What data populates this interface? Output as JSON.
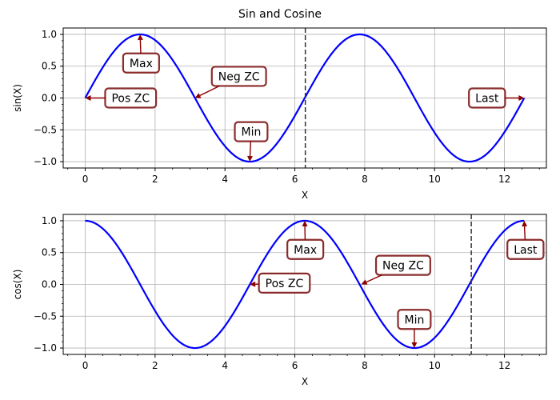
{
  "figure_title": "Sin and Cosine",
  "colors": {
    "curve": "#0000ff",
    "annotation_border": "#8b2c2c",
    "arrow": "#8b0000",
    "vline": "#333333",
    "grid": "#b0b0b0"
  },
  "chart_data": [
    {
      "type": "line",
      "function": "sin",
      "xlabel": "X",
      "ylabel": "sin(X)",
      "xlim": [
        -0.63,
        13.2
      ],
      "ylim": [
        -1.1,
        1.1
      ],
      "x_ticks": [
        0,
        2,
        4,
        6,
        8,
        10,
        12
      ],
      "y_ticks": [
        -1.0,
        -0.5,
        0.0,
        0.5,
        1.0
      ],
      "x_tick_labels": [
        "0",
        "2",
        "4",
        "6",
        "8",
        "10",
        "12"
      ],
      "y_tick_labels": [
        "−1.0",
        "−0.5",
        "0.0",
        "0.5",
        "1.0"
      ],
      "grid": true,
      "x_range": [
        0,
        12.566
      ],
      "vline_x": 6.3,
      "annotations": [
        {
          "label": "Max",
          "point": [
            1.571,
            1.0
          ],
          "text_at": [
            1.6,
            0.55
          ]
        },
        {
          "label": "Neg ZC",
          "point": [
            3.14,
            0.0
          ],
          "text_at": [
            4.4,
            0.34
          ]
        },
        {
          "label": "Pos ZC",
          "point": [
            0.0,
            0.0
          ],
          "text_at": [
            1.3,
            0.0
          ]
        },
        {
          "label": "Min",
          "point": [
            4.71,
            -1.0
          ],
          "text_at": [
            4.75,
            -0.53
          ]
        },
        {
          "label": "Last",
          "point": [
            12.566,
            0.0
          ],
          "text_at": [
            11.5,
            0.0
          ]
        }
      ]
    },
    {
      "type": "line",
      "function": "cos",
      "xlabel": "X",
      "ylabel": "cos(X)",
      "xlim": [
        -0.63,
        13.2
      ],
      "ylim": [
        -1.1,
        1.1
      ],
      "x_ticks": [
        0,
        2,
        4,
        6,
        8,
        10,
        12
      ],
      "y_ticks": [
        -1.0,
        -0.5,
        0.0,
        0.5,
        1.0
      ],
      "x_tick_labels": [
        "0",
        "2",
        "4",
        "6",
        "8",
        "10",
        "12"
      ],
      "y_tick_labels": [
        "−1.0",
        "−0.5",
        "0.0",
        "0.5",
        "1.0"
      ],
      "grid": true,
      "x_range": [
        0,
        12.566
      ],
      "vline_x": 11.05,
      "annotations": [
        {
          "label": "Max",
          "point": [
            6.283,
            1.0
          ],
          "text_at": [
            6.3,
            0.55
          ]
        },
        {
          "label": "Neg ZC",
          "point": [
            7.9,
            0.0
          ],
          "text_at": [
            9.1,
            0.3
          ]
        },
        {
          "label": "Pos ZC",
          "point": [
            4.71,
            0.0
          ],
          "text_at": [
            5.7,
            0.02
          ]
        },
        {
          "label": "Min",
          "point": [
            9.42,
            -1.0
          ],
          "text_at": [
            9.42,
            -0.55
          ]
        },
        {
          "label": "Last",
          "point": [
            12.566,
            1.0
          ],
          "text_at": [
            12.6,
            0.55
          ]
        }
      ]
    }
  ]
}
